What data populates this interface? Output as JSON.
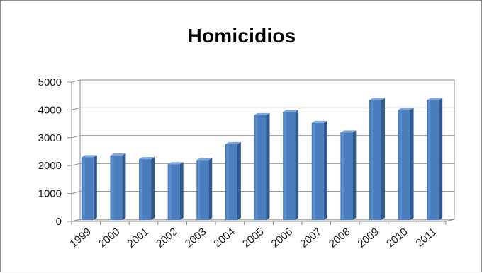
{
  "chart_data": {
    "type": "bar",
    "title": "Homicidios",
    "xlabel": "",
    "ylabel": "",
    "categories": [
      "1999",
      "2000",
      "2001",
      "2002",
      "2003",
      "2004",
      "2005",
      "2006",
      "2007",
      "2008",
      "2009",
      "2010",
      "2011"
    ],
    "values": [
      2300,
      2360,
      2230,
      2050,
      2200,
      2770,
      3810,
      3930,
      3530,
      3190,
      4350,
      4000,
      4350
    ],
    "ylim": [
      0,
      5000
    ],
    "yticks": [
      "0",
      "1000",
      "2000",
      "3000",
      "4000",
      "5000"
    ],
    "grid": true,
    "legend": "none",
    "style": "3d-bar",
    "colors": {
      "bar_front": "#4a7ebf",
      "bar_side": "#2f5a8f",
      "bar_top": "#7da7d9",
      "grid": "#8c8c8c",
      "axis": "#8c8c8c",
      "wall": "#ffffff",
      "floor": "#d9d9d9"
    }
  }
}
